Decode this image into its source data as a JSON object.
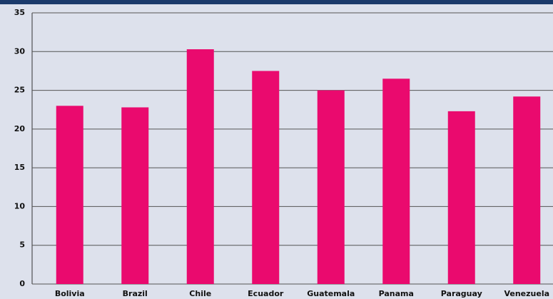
{
  "chart_data": {
    "type": "bar",
    "categories": [
      "Bolivia",
      "Brazil",
      "Chile",
      "Ecuador",
      "Guatemala",
      "Panama",
      "Paraguay",
      "Venezuela"
    ],
    "values": [
      23.0,
      22.8,
      30.3,
      27.5,
      25.0,
      26.5,
      22.3,
      24.2
    ],
    "color": "#ea0a6e",
    "ylim": [
      0,
      35
    ],
    "yticks": [
      0,
      5,
      10,
      15,
      20,
      25,
      30,
      35
    ],
    "grid": true
  }
}
